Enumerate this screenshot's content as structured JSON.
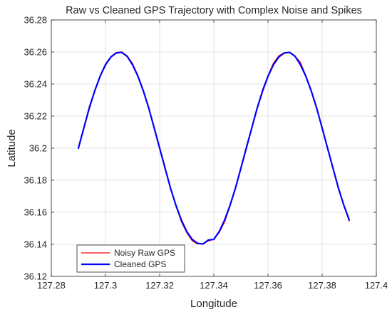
{
  "chart_data": {
    "type": "line",
    "title": "Raw vs Cleaned GPS Trajectory with Complex Noise and Spikes",
    "xlabel": "Longitude",
    "ylabel": "Latitude",
    "xlim": [
      127.28,
      127.4
    ],
    "ylim": [
      36.12,
      36.28
    ],
    "xticks": [
      127.28,
      127.3,
      127.32,
      127.34,
      127.36,
      127.38,
      127.4
    ],
    "yticks": [
      36.12,
      36.14,
      36.16,
      36.18,
      36.2,
      36.22,
      36.24,
      36.26,
      36.28
    ],
    "xtick_labels": [
      "127.28",
      "127.3",
      "127.32",
      "127.34",
      "127.36",
      "127.38",
      "127.4"
    ],
    "ytick_labels": [
      "36.12",
      "36.14",
      "36.16",
      "36.18",
      "36.2",
      "36.22",
      "36.24",
      "36.26",
      "36.28"
    ],
    "grid": true,
    "legend_position": "bottom-left",
    "series": [
      {
        "name": "Noisy Raw GPS",
        "color": "#ff0000",
        "x": [
          127.29,
          127.292,
          127.294,
          127.296,
          127.298,
          127.3,
          127.302,
          127.304,
          127.306,
          127.308,
          127.31,
          127.312,
          127.314,
          127.316,
          127.318,
          127.32,
          127.322,
          127.324,
          127.326,
          127.328,
          127.33,
          127.332,
          127.334,
          127.336,
          127.338,
          127.34,
          127.342,
          127.344,
          127.346,
          127.348,
          127.35,
          127.352,
          127.354,
          127.356,
          127.358,
          127.36,
          127.362,
          127.364,
          127.366,
          127.368,
          127.37,
          127.372,
          127.374,
          127.376,
          127.378,
          127.38,
          127.382,
          127.384,
          127.386,
          127.388,
          127.39
        ],
        "y": [
          36.2008,
          36.2131,
          36.2259,
          36.2359,
          36.2453,
          36.2527,
          36.2572,
          36.2598,
          36.2601,
          36.2576,
          36.2529,
          36.2453,
          36.2359,
          36.2247,
          36.2131,
          36.2008,
          36.1883,
          36.1751,
          36.1639,
          36.1541,
          36.1472,
          36.1422,
          36.1402,
          36.1403,
          36.1421,
          36.1431,
          36.1473,
          36.1539,
          36.1638,
          36.1758,
          36.1879,
          36.2011,
          36.2128,
          36.2256,
          36.2366,
          36.2454,
          36.2531,
          36.2577,
          36.2596,
          36.2598,
          36.2574,
          36.2536,
          36.2451,
          36.2352,
          36.2242,
          36.2133,
          36.2002,
          36.1876,
          36.1759,
          36.1641,
          36.1543
        ]
      },
      {
        "name": "Cleaned GPS",
        "color": "#0000ff",
        "x": [
          127.29,
          127.292,
          127.294,
          127.296,
          127.298,
          127.3,
          127.302,
          127.304,
          127.306,
          127.308,
          127.31,
          127.312,
          127.314,
          127.316,
          127.318,
          127.32,
          127.322,
          127.324,
          127.326,
          127.328,
          127.33,
          127.332,
          127.334,
          127.336,
          127.338,
          127.34,
          127.342,
          127.344,
          127.346,
          127.348,
          127.35,
          127.352,
          127.354,
          127.356,
          127.358,
          127.36,
          127.362,
          127.364,
          127.366,
          127.368,
          127.37,
          127.372,
          127.374,
          127.376,
          127.378,
          127.38,
          127.382,
          127.384,
          127.386,
          127.388,
          127.39
        ],
        "y": [
          36.2,
          36.2125,
          36.2249,
          36.2356,
          36.2448,
          36.252,
          36.2569,
          36.2594,
          36.2598,
          36.2573,
          36.252,
          36.2448,
          36.2356,
          36.2249,
          36.2125,
          36.2,
          36.1875,
          36.1751,
          36.1644,
          36.1552,
          36.148,
          36.1431,
          36.1406,
          36.1402,
          36.1427,
          36.1431,
          36.148,
          36.1552,
          36.1644,
          36.1751,
          36.1875,
          36.2,
          36.2125,
          36.2249,
          36.2356,
          36.2448,
          36.252,
          36.2569,
          36.2594,
          36.2598,
          36.2573,
          36.252,
          36.2448,
          36.2356,
          36.2249,
          36.2125,
          36.2,
          36.1875,
          36.1751,
          36.1644,
          36.1552
        ]
      }
    ]
  }
}
